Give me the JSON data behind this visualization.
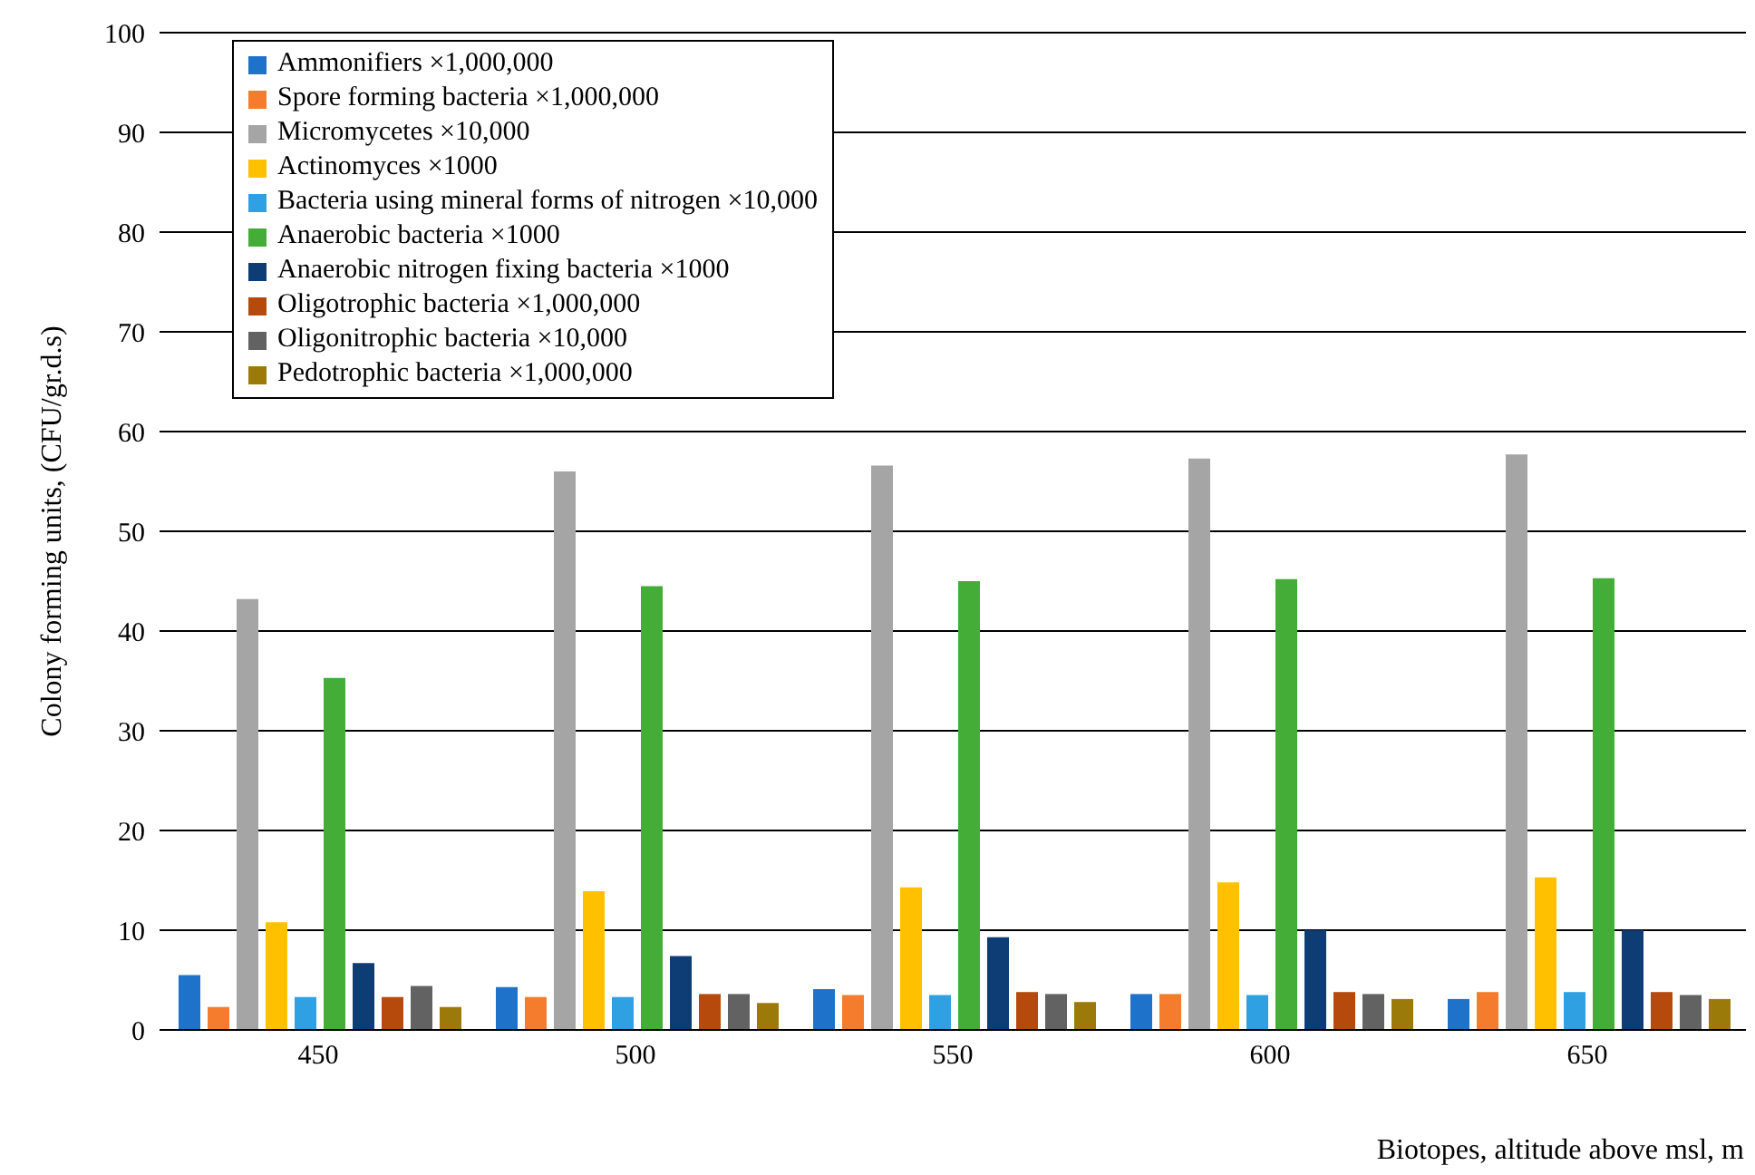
{
  "chart_data": {
    "type": "bar",
    "xlabel": "Biotopes, altitude above msl, m",
    "ylabel": "Colony forming units, (CFU/gr.d.s)",
    "categories": [
      "450",
      "500",
      "550",
      "600",
      "650"
    ],
    "series": [
      {
        "name": "Ammonifiers ×1,000,000",
        "color": "#1f72c9",
        "values": [
          5.5,
          4.3,
          4.1,
          3.6,
          3.1
        ]
      },
      {
        "name": "Spore forming bacteria ×1,000,000",
        "color": "#f47c2c",
        "values": [
          2.3,
          3.3,
          3.5,
          3.6,
          3.8
        ]
      },
      {
        "name": "Micromycetes ×10,000",
        "color": "#a5a5a5",
        "values": [
          43.2,
          56,
          56.6,
          57.3,
          57.7
        ]
      },
      {
        "name": "Actinomyces ×1000",
        "color": "#ffc000",
        "values": [
          10.8,
          13.9,
          14.3,
          14.8,
          15.3
        ]
      },
      {
        "name": "Bacteria using mineral forms of nitrogen ×10,000",
        "color": "#2fa1e3",
        "values": [
          3.3,
          3.3,
          3.5,
          3.5,
          3.8
        ]
      },
      {
        "name": "Anaerobic bacteria ×1000",
        "color": "#43ad38",
        "values": [
          35.3,
          44.5,
          45,
          45.2,
          45.3
        ]
      },
      {
        "name": "Anaerobic nitrogen fixing bacteria ×1000",
        "color": "#0d3d74",
        "values": [
          6.7,
          7.4,
          9.3,
          10,
          10
        ]
      },
      {
        "name": "Oligotrophic bacteria ×1,000,000",
        "color": "#b54a0c",
        "values": [
          3.3,
          3.6,
          3.8,
          3.8,
          3.8
        ]
      },
      {
        "name": "Oligonitrophic bacteria ×10,000",
        "color": "#626262",
        "values": [
          4.4,
          3.6,
          3.6,
          3.6,
          3.5
        ]
      },
      {
        "name": "Pedotrophic bacteria ×1,000,000",
        "color": "#9c7a0a",
        "values": [
          2.3,
          2.7,
          2.8,
          3.1,
          3.1
        ]
      }
    ],
    "ylim": [
      0,
      100
    ],
    "yticks": [
      0,
      10,
      20,
      30,
      40,
      50,
      60,
      70,
      80,
      90,
      100
    ],
    "grid": "y",
    "legend": "top left"
  }
}
